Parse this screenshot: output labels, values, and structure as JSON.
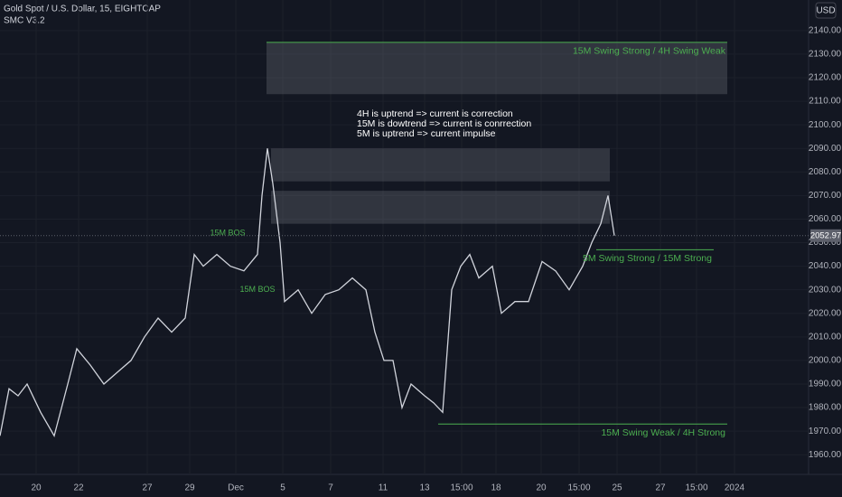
{
  "chart_data": {
    "type": "line",
    "title": "Gold Spot / U.S. Dollar, 15, EIGHTCAP",
    "subtitle": "SMC V3.2",
    "currency": "USD",
    "color": "#d1d4dc",
    "grid": true,
    "x": [
      0,
      2,
      4,
      6,
      9,
      12,
      15,
      17,
      20,
      23,
      26,
      29,
      32,
      35,
      38,
      41,
      43,
      45,
      48,
      51,
      54,
      57,
      58,
      59.2,
      60.4,
      62,
      63,
      66,
      69,
      72,
      75,
      78,
      81,
      83,
      85,
      87,
      89,
      91,
      94,
      96,
      98,
      100,
      102,
      104,
      106,
      109,
      111,
      114,
      117,
      120,
      123,
      126,
      129,
      131,
      133,
      134.6,
      136
    ],
    "values": [
      1968,
      1988,
      1985,
      1990,
      1978,
      1968,
      1990,
      2005,
      1998,
      1990,
      1995,
      2000,
      2010,
      2018,
      2012,
      2018,
      2045,
      2040,
      2045,
      2040,
      2038,
      2045,
      2070,
      2090,
      2075,
      2050,
      2025,
      2030,
      2020,
      2028,
      2030,
      2035,
      2030,
      2012,
      2000,
      2000,
      1980,
      1990,
      1985,
      1982,
      1978,
      2030,
      2040,
      2045,
      2035,
      2040,
      2020,
      2025,
      2025,
      2042,
      2038,
      2030,
      2040,
      2050,
      2058,
      2070,
      2053
    ],
    "xlim": [
      0,
      179
    ],
    "xticks": [
      {
        "value": 8,
        "label": "20"
      },
      {
        "value": 17.4,
        "label": "22"
      },
      {
        "value": 32.6,
        "label": "27"
      },
      {
        "value": 42,
        "label": "29"
      },
      {
        "value": 52.2,
        "label": "Dec"
      },
      {
        "value": 62.6,
        "label": "5"
      },
      {
        "value": 73.2,
        "label": "7"
      },
      {
        "value": 84.8,
        "label": "11"
      },
      {
        "value": 94,
        "label": "13"
      },
      {
        "value": 102.2,
        "label": "15:00"
      },
      {
        "value": 109.8,
        "label": "18"
      },
      {
        "value": 119.8,
        "label": "20"
      },
      {
        "value": 128.2,
        "label": "15:00"
      },
      {
        "value": 136.6,
        "label": "25"
      },
      {
        "value": 146.2,
        "label": "27"
      },
      {
        "value": 154.2,
        "label": "15:00"
      },
      {
        "value": 162.6,
        "label": "2024"
      }
    ],
    "ylim": [
      1951.64,
      2152.98
    ],
    "yticks": [
      {
        "value": 1960,
        "label": "1960.00"
      },
      {
        "value": 1970,
        "label": "1970.00"
      },
      {
        "value": 1980,
        "label": "1980.00"
      },
      {
        "value": 1990,
        "label": "1990.00"
      },
      {
        "value": 2000,
        "label": "2000.00"
      },
      {
        "value": 2010,
        "label": "2010.00"
      },
      {
        "value": 2020,
        "label": "2020.00"
      },
      {
        "value": 2030,
        "label": "2030.00"
      },
      {
        "value": 2040,
        "label": "2040.00"
      },
      {
        "value": 2050,
        "label": "2050.00"
      },
      {
        "value": 2060,
        "label": "2060.00"
      },
      {
        "value": 2070,
        "label": "2070.00"
      },
      {
        "value": 2080,
        "label": "2080.00"
      },
      {
        "value": 2090,
        "label": "2090.00"
      },
      {
        "value": 2100,
        "label": "2100.00"
      },
      {
        "value": 2110,
        "label": "2110.00"
      },
      {
        "value": 2120,
        "label": "2120.00"
      },
      {
        "value": 2130,
        "label": "2130.00"
      },
      {
        "value": 2140,
        "label": "2140.00"
      }
    ],
    "last_price": 2052.97,
    "zones": [
      {
        "top": 2135,
        "bottom": 2113,
        "x0": 59,
        "x1": 161
      },
      {
        "top": 2090,
        "bottom": 2076,
        "x0": 60,
        "x1": 135
      },
      {
        "top": 2072,
        "bottom": 2058,
        "x0": 60,
        "x1": 135
      }
    ],
    "levels": [
      {
        "label": "15M Swing Strong /  4H Swing Weak",
        "value": 2135,
        "x0": 59,
        "x1": 161
      },
      {
        "label": "5M Swing Strong / 15M Strong",
        "value": 2047,
        "x0": 132,
        "x1": 158
      },
      {
        "label": "15M Swing Weak / 4H Strong",
        "value": 1973,
        "x0": 97,
        "x1": 161
      }
    ],
    "annotations": [
      {
        "text": "15M BOS",
        "x": 50.4,
        "y": 2054
      },
      {
        "text": "15M BOS",
        "x": 57,
        "y": 2030
      }
    ],
    "notes": [
      "4H is uptrend => current is correction",
      "15M is dowtrend => current is conrrection",
      "5M is uptrend => current impulse"
    ]
  }
}
